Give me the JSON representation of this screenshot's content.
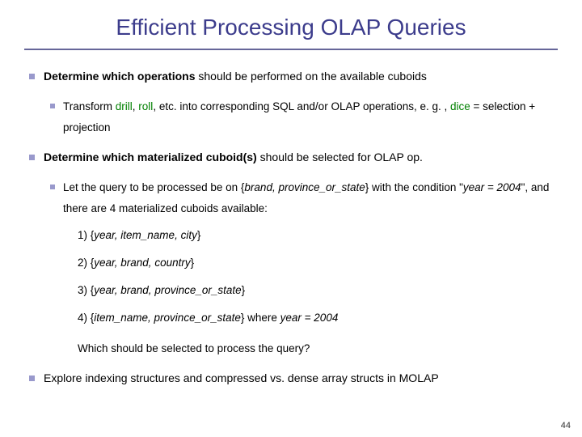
{
  "title": "Efficient Processing OLAP Queries",
  "colors": {
    "title": "#3c3c8c",
    "rule": "#666699",
    "bullet": "#9999cc",
    "green": "#008000",
    "text": "#000000"
  },
  "bullets": [
    {
      "prefix": "Determine which operations",
      "suffix": " should be performed on the available cuboids",
      "sub": {
        "lead": "Transform ",
        "g1": "drill",
        "mid1": ", ",
        "g2": "roll",
        "mid2": ", etc. into corresponding SQL and/or OLAP operations, e. g. , ",
        "g3": "dice",
        "tail": " = selection + projection"
      }
    },
    {
      "prefix": "Determine which materialized cuboid(s)",
      "suffix": " should be selected for OLAP op.",
      "sub2": {
        "p1": "Let the query to be processed be on {",
        "i1": "brand, province_or_state",
        "p2": "} with the condition \"",
        "i2": "year = 2004",
        "p3": "\", and there are 4 materialized cuboids available:"
      },
      "cuboids": [
        {
          "num": "1) {",
          "it": "year, item_name, city",
          "close": "}"
        },
        {
          "num": "2) {",
          "it": "year, brand, country",
          "close": "}"
        },
        {
          "num": "3) {",
          "it": "year, brand, province_or_state",
          "close": "}"
        },
        {
          "num": "4) {",
          "it": "item_name, province_or_state",
          "close": "}  where ",
          "extra": "year = 2004"
        }
      ],
      "which": "Which should be selected to process the query?"
    },
    {
      "plain": "Explore indexing structures and compressed vs. dense array structs in MOLAP"
    }
  ],
  "page": "44"
}
